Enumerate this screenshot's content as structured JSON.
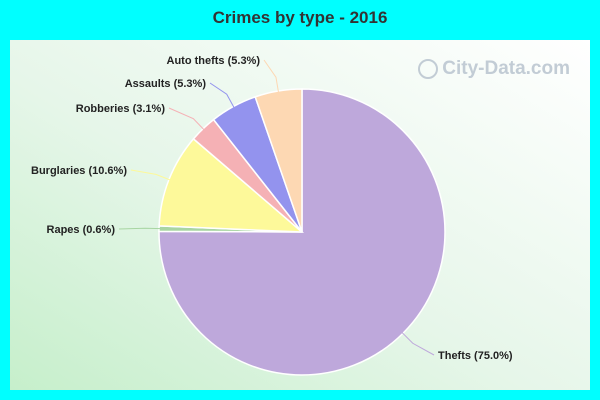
{
  "title": "Crimes by type - 2016",
  "watermark": "City-Data.com",
  "chart_data": {
    "type": "pie",
    "title": "Crimes by type - 2016",
    "slices": [
      {
        "name": "Thefts",
        "value": 75.0,
        "label": "Thefts (75.0%)",
        "color": "#bea8db"
      },
      {
        "name": "Rapes",
        "value": 0.6,
        "label": "Rapes (0.6%)",
        "color": "#a8d5a2"
      },
      {
        "name": "Burglaries",
        "value": 10.6,
        "label": "Burglaries (10.6%)",
        "color": "#fdf99a"
      },
      {
        "name": "Robberies",
        "value": 3.1,
        "label": "Robberies (3.1%)",
        "color": "#f5b1b5"
      },
      {
        "name": "Assaults",
        "value": 5.3,
        "label": "Assaults (5.3%)",
        "color": "#9393ee"
      },
      {
        "name": "Auto thefts",
        "value": 5.3,
        "label": "Auto thefts (5.3%)",
        "color": "#fdd8b3"
      }
    ]
  }
}
